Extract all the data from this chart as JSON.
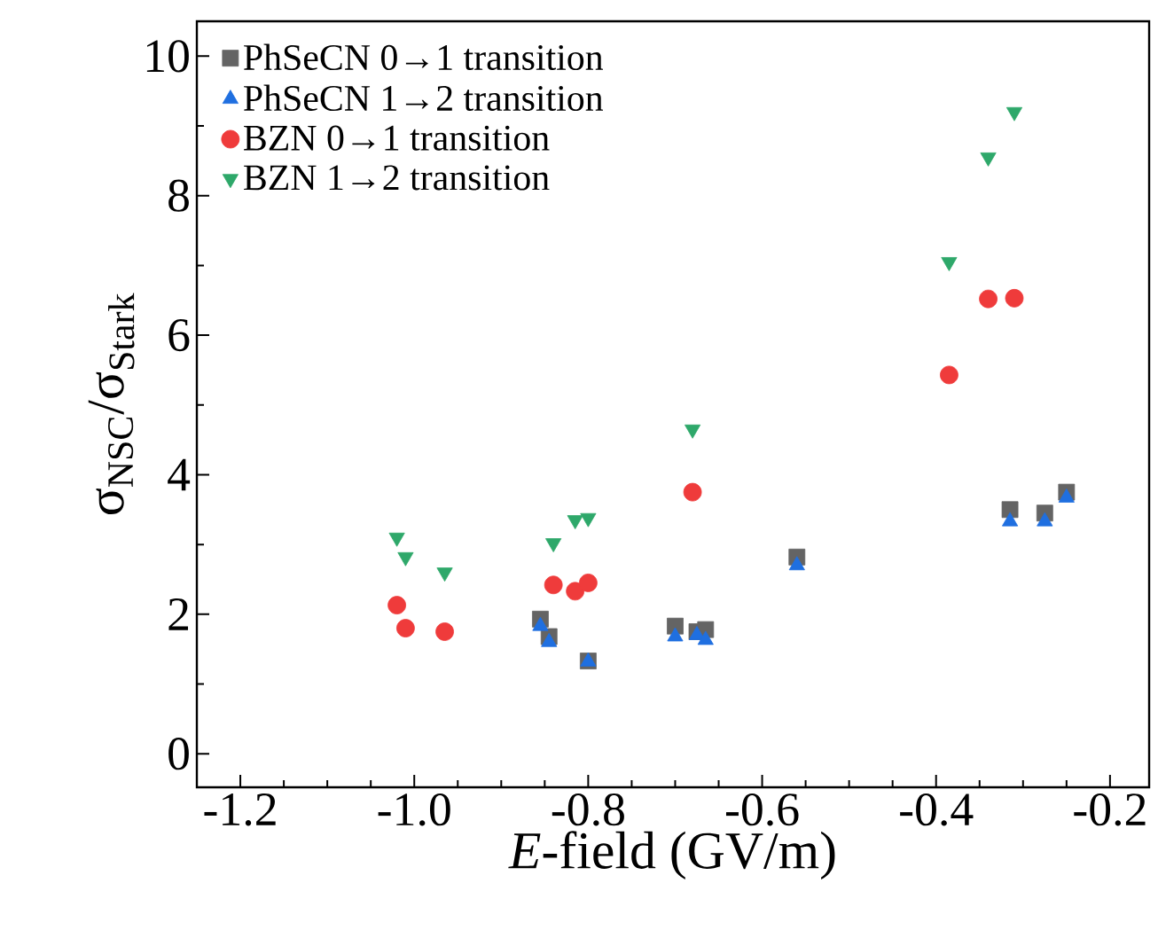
{
  "chart_data": {
    "type": "scatter",
    "xlabel": "*E*-field (GV/m)",
    "ylabel": "σ$_{NSC}$/σ$_{Stark}$",
    "xlim": [
      -1.25,
      -0.155
    ],
    "ylim": [
      -0.48,
      10.5
    ],
    "xticks": [
      -1.2,
      {
        "value": -1.0,
        "label": "-1.0"
      },
      -0.8,
      -0.6,
      -0.4,
      -0.2
    ],
    "yticks": [
      0,
      2,
      4,
      6,
      8,
      10
    ],
    "grid": false,
    "legend": "top left",
    "series": [
      {
        "name": "PhSeCN 0→1 transition",
        "color": "#646464",
        "marker": "square",
        "x": [
          -0.855,
          -0.845,
          -0.8,
          -0.7,
          -0.675,
          -0.665,
          -0.56,
          -0.315,
          -0.275,
          -0.25
        ],
        "values": [
          1.93,
          1.68,
          1.33,
          1.83,
          1.75,
          1.78,
          2.82,
          3.5,
          3.45,
          3.75
        ]
      },
      {
        "name": "PhSeCN 1→2 transition",
        "color": "#1f6fe0",
        "marker": "triangle",
        "x": [
          -0.855,
          -0.845,
          -0.8,
          -0.7,
          -0.675,
          -0.665,
          -0.56,
          -0.315,
          -0.275,
          -0.25
        ],
        "values": [
          1.83,
          1.6,
          1.32,
          1.68,
          1.7,
          1.63,
          2.7,
          3.33,
          3.33,
          3.67
        ]
      },
      {
        "name": "BZN 0→1 transition",
        "color": "#ef3b3b",
        "marker": "circle",
        "x": [
          -1.02,
          -1.01,
          -0.965,
          -0.84,
          -0.815,
          -0.8,
          -0.68,
          -0.385,
          -0.34,
          -0.31
        ],
        "values": [
          2.13,
          1.8,
          1.75,
          2.42,
          2.33,
          2.45,
          3.75,
          5.43,
          6.52,
          6.53
        ]
      },
      {
        "name": "BZN 1→2 transition",
        "color": "#2ea86a",
        "marker": "triangle_down",
        "x": [
          -1.02,
          -1.01,
          -0.965,
          -0.84,
          -0.815,
          -0.8,
          -0.68,
          -0.385,
          -0.34,
          -0.31
        ],
        "values": [
          3.1,
          2.82,
          2.6,
          3.02,
          3.35,
          3.38,
          4.65,
          7.05,
          8.55,
          9.2
        ]
      }
    ]
  }
}
